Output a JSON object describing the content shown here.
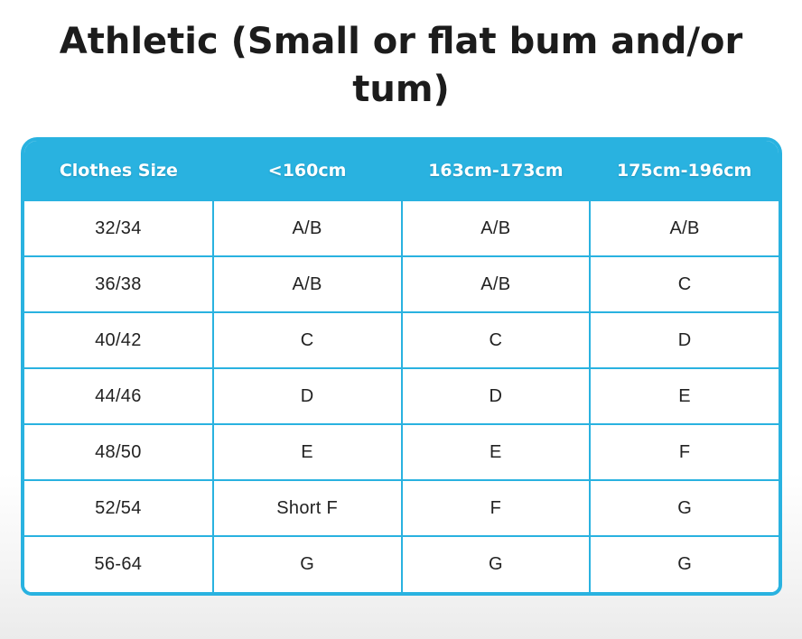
{
  "title": {
    "full": "Athletic (Small or flat bum and/or tum)",
    "line1": "Athletic (Small or flat bum and/or",
    "line2": "tum)"
  },
  "colors": {
    "accent_cyan": "#29b2e0",
    "title_text": "#1c1c1c",
    "header_text": "#ffffff",
    "body_text": "#222222",
    "page_bottom_fade": "#ebebeb"
  },
  "chart_data": {
    "type": "table",
    "title": "Athletic (Small or flat bum and/or tum)",
    "columns": [
      "Clothes Size",
      "<160cm",
      "163cm-173cm",
      "175cm-196cm"
    ],
    "rows": [
      [
        "32/34",
        "A/B",
        "A/B",
        "A/B"
      ],
      [
        "36/38",
        "A/B",
        "A/B",
        "C"
      ],
      [
        "40/42",
        "C",
        "C",
        "D"
      ],
      [
        "44/46",
        "D",
        "D",
        "E"
      ],
      [
        "48/50",
        "E",
        "E",
        "F"
      ],
      [
        "52/54",
        "Short F",
        "F",
        "G"
      ],
      [
        "56-64",
        "G",
        "G",
        "G"
      ]
    ],
    "layout_hints": {
      "header_background": "#29b2e0",
      "grid": true,
      "columns_equal_width": true,
      "rounded_corners": true
    }
  }
}
